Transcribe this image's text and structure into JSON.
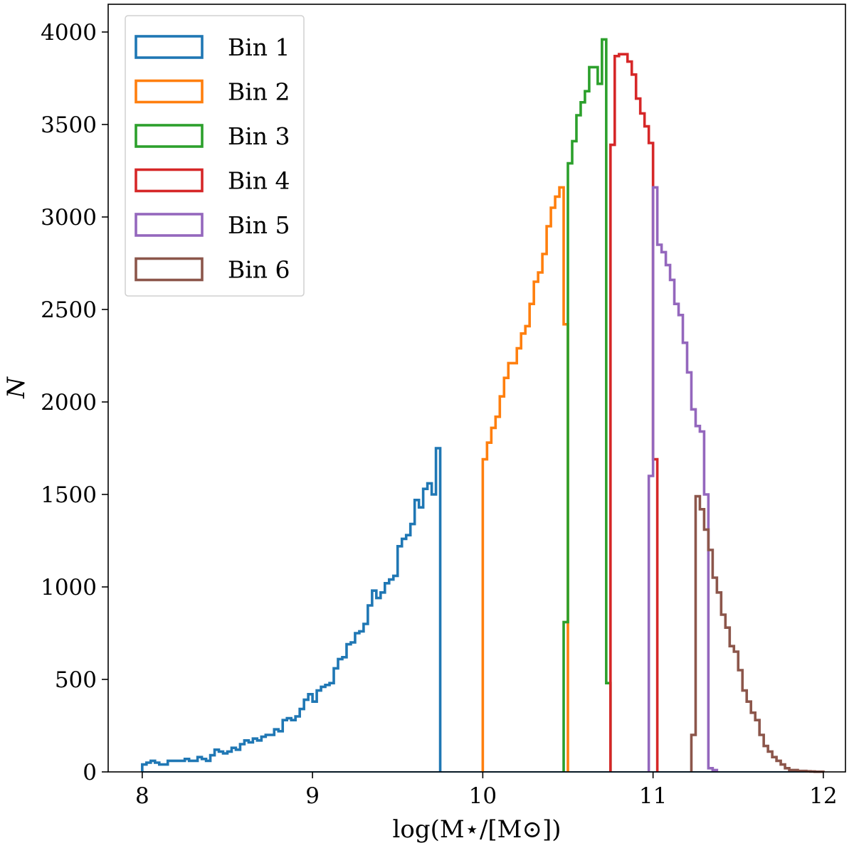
{
  "chart_data": {
    "type": "histogram-step",
    "title": "",
    "xlabel": "log(M⋆/[M⊙])",
    "ylabel": "N",
    "xlim": [
      7.8,
      12.13
    ],
    "ylim": [
      0,
      4150
    ],
    "xticks": [
      8,
      9,
      10,
      11,
      12
    ],
    "xtick_labels": [
      "8",
      "9",
      "10",
      "11",
      "12"
    ],
    "yticks": [
      0,
      500,
      1000,
      1500,
      2000,
      2500,
      3000,
      3500,
      4000
    ],
    "ytick_labels": [
      "0",
      "500",
      "1000",
      "1500",
      "2000",
      "2500",
      "3000",
      "3500",
      "4000"
    ],
    "bin_width": 0.025,
    "legend_position": "upper-left",
    "series": [
      {
        "name": "Bin 1",
        "color": "#1f77b4",
        "x_start": 8.0,
        "values": [
          40,
          50,
          60,
          50,
          40,
          40,
          60,
          60,
          60,
          60,
          70,
          60,
          60,
          80,
          70,
          60,
          90,
          120,
          110,
          100,
          110,
          130,
          120,
          150,
          170,
          160,
          180,
          170,
          190,
          200,
          200,
          230,
          220,
          280,
          290,
          280,
          300,
          340,
          390,
          420,
          380,
          440,
          460,
          470,
          480,
          560,
          610,
          620,
          690,
          700,
          750,
          760,
          800,
          900,
          980,
          940,
          970,
          1020,
          1040,
          1060,
          1220,
          1260,
          1280,
          1340,
          1470,
          1430,
          1530,
          1560,
          1500,
          1750
        ]
      },
      {
        "name": "Bin 2",
        "color": "#ff7f0e",
        "x_start": 10.0,
        "values": [
          1690,
          1780,
          1860,
          1920,
          2030,
          2130,
          2210,
          2210,
          2290,
          2370,
          2410,
          2530,
          2650,
          2700,
          2800,
          2950,
          3050,
          3110,
          3160,
          2420
        ]
      },
      {
        "name": "Bin 3",
        "color": "#2ca02c",
        "x_start": 10.475,
        "values": [
          810,
          3290,
          3410,
          3550,
          3620,
          3680,
          3810,
          3810,
          3720,
          3960,
          480
        ]
      },
      {
        "name": "Bin 4",
        "color": "#d62728",
        "x_start": 10.75,
        "values": [
          3390,
          3870,
          3880,
          3880,
          3840,
          3770,
          3640,
          3560,
          3490,
          3400,
          1690
        ]
      },
      {
        "name": "Bin 5",
        "color": "#9467bd",
        "x_start": 10.975,
        "values": [
          1600,
          3160,
          2850,
          2810,
          2740,
          2660,
          2530,
          2470,
          2320,
          2160,
          1960,
          1870,
          1840,
          1500,
          20,
          10
        ]
      },
      {
        "name": "Bin 6",
        "color": "#8c564b",
        "x_start": 11.225,
        "values": [
          200,
          1490,
          1420,
          1310,
          1200,
          1050,
          970,
          850,
          780,
          680,
          650,
          550,
          440,
          380,
          320,
          280,
          200,
          140,
          110,
          80,
          60,
          40,
          20,
          10,
          10,
          5,
          5,
          3,
          2,
          1,
          1
        ]
      }
    ]
  }
}
